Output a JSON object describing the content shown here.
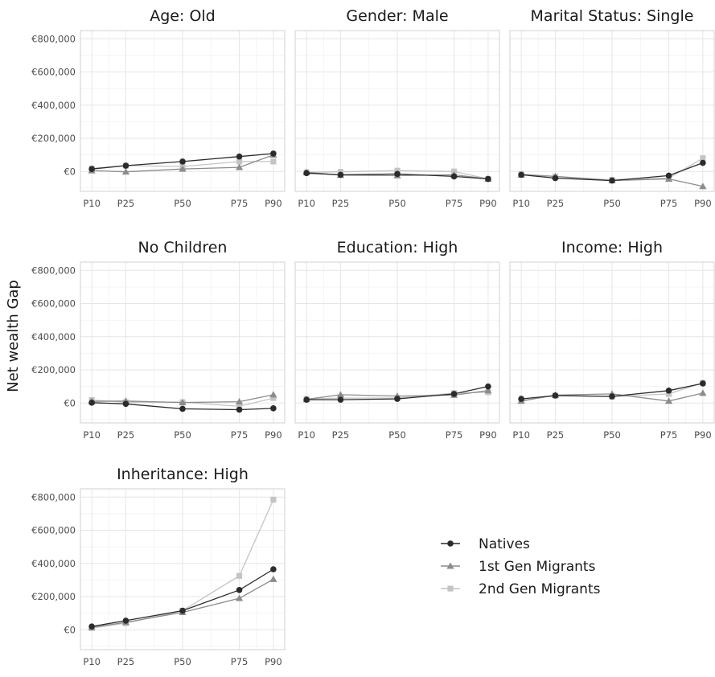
{
  "chart_data": {
    "type": "line",
    "ylabel": "Net wealth Gap",
    "x_categories": [
      "P10",
      "P25",
      "P50",
      "P75",
      "P90"
    ],
    "y_ticks": [
      "€0",
      "€200,000",
      "€400,000",
      "€600,000",
      "€800,000"
    ],
    "ylim": [
      -120000,
      850000
    ],
    "legend": {
      "placement": "bottom-right",
      "entries": [
        {
          "label": "Natives",
          "color": "#2b2b2b",
          "marker": "circle"
        },
        {
          "label": "1st Gen Migrants",
          "color": "#8c8c8c",
          "marker": "triangle"
        },
        {
          "label": "2nd Gen Migrants",
          "color": "#c4c4c4",
          "marker": "square"
        }
      ]
    },
    "panels": [
      {
        "title": "Age: Old",
        "series": [
          {
            "name": "Natives",
            "values": [
              15000,
              35000,
              60000,
              90000,
              108000
            ]
          },
          {
            "name": "1st Gen Migrants",
            "values": [
              5000,
              -2000,
              15000,
              25000,
              100000
            ]
          },
          {
            "name": "2nd Gen Migrants",
            "values": [
              18000,
              35000,
              30000,
              60000,
              60000
            ]
          }
        ]
      },
      {
        "title": "Gender: Male",
        "series": [
          {
            "name": "Natives",
            "values": [
              -10000,
              -20000,
              -15000,
              -30000,
              -45000
            ]
          },
          {
            "name": "1st Gen Migrants",
            "values": [
              -5000,
              -22000,
              -25000,
              -20000,
              -45000
            ]
          },
          {
            "name": "2nd Gen Migrants",
            "values": [
              -5000,
              -2000,
              5000,
              0,
              -45000
            ]
          }
        ]
      },
      {
        "title": "Marital Status: Single",
        "series": [
          {
            "name": "Natives",
            "values": [
              -20000,
              -40000,
              -55000,
              -25000,
              52000
            ]
          },
          {
            "name": "1st Gen Migrants",
            "values": [
              -20000,
              -30000,
              -55000,
              -45000,
              -90000
            ]
          },
          {
            "name": "2nd Gen Migrants",
            "values": [
              -15000,
              -30000,
              -50000,
              -40000,
              80000
            ]
          }
        ]
      },
      {
        "title": "No Children",
        "series": [
          {
            "name": "Natives",
            "values": [
              2000,
              -5000,
              -35000,
              -40000,
              -32000
            ]
          },
          {
            "name": "1st Gen Migrants",
            "values": [
              10000,
              12000,
              3000,
              8000,
              50000
            ]
          },
          {
            "name": "2nd Gen Migrants",
            "values": [
              18000,
              5000,
              5000,
              -20000,
              30000
            ]
          }
        ]
      },
      {
        "title": "Education: High",
        "series": [
          {
            "name": "Natives",
            "values": [
              20000,
              20000,
              25000,
              55000,
              100000
            ]
          },
          {
            "name": "1st Gen Migrants",
            "values": [
              22000,
              50000,
              42000,
              48000,
              75000
            ]
          },
          {
            "name": "2nd Gen Migrants",
            "values": [
              25000,
              30000,
              30000,
              60000,
              65000
            ]
          }
        ]
      },
      {
        "title": "Income: High",
        "series": [
          {
            "name": "Natives",
            "values": [
              25000,
              45000,
              40000,
              75000,
              118000
            ]
          },
          {
            "name": "1st Gen Migrants",
            "values": [
              12000,
              48000,
              55000,
              12000,
              60000
            ]
          },
          {
            "name": "2nd Gen Migrants",
            "values": [
              15000,
              45000,
              38000,
              55000,
              122000
            ]
          }
        ]
      },
      {
        "title": "Inheritance: High",
        "series": [
          {
            "name": "Natives",
            "values": [
              20000,
              55000,
              115000,
              240000,
              365000
            ]
          },
          {
            "name": "1st Gen Migrants",
            "values": [
              15000,
              45000,
              105000,
              190000,
              305000
            ]
          },
          {
            "name": "2nd Gen Migrants",
            "values": [
              10000,
              40000,
              115000,
              325000,
              785000
            ]
          }
        ]
      }
    ]
  }
}
